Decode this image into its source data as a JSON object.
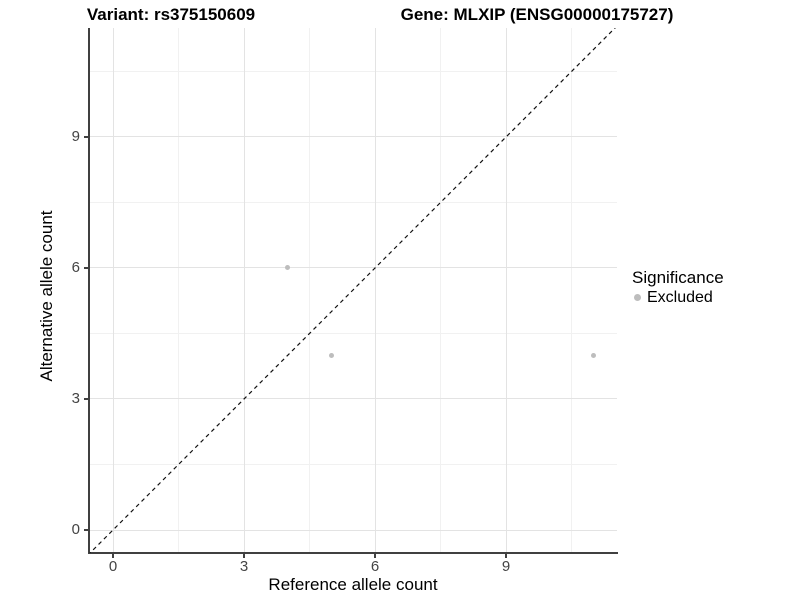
{
  "titles": {
    "variant": "Variant: rs375150609",
    "gene": "Gene: MLXIP (ENSG00000175727)"
  },
  "legend": {
    "title": "Significance",
    "position": "right",
    "items": [
      {
        "label": "Excluded",
        "color": "#bdbdbd"
      }
    ]
  },
  "chart_data": {
    "type": "scatter",
    "title_left": "Variant: rs375150609",
    "title_right": "Gene: MLXIP (ENSG00000175727)",
    "xlabel": "Reference allele count",
    "ylabel": "Alternative allele count",
    "xlim": [
      -0.55,
      11.55
    ],
    "ylim": [
      -0.55,
      11.5
    ],
    "x_ticks": [
      0,
      3,
      6,
      9
    ],
    "y_ticks": [
      0,
      3,
      6,
      9
    ],
    "x_minor": [
      1.5,
      4.5,
      7.5,
      10.5
    ],
    "y_minor": [
      1.5,
      4.5,
      7.5,
      10.5
    ],
    "grid": true,
    "legend_position": "right",
    "series": [
      {
        "name": "Excluded",
        "color": "#bdbdbd",
        "points": [
          [
            4,
            6
          ],
          [
            5,
            4
          ],
          [
            11,
            4
          ]
        ]
      }
    ],
    "reference_line": {
      "type": "identity",
      "equation": "y = x",
      "style": "dashed",
      "color": "#111111"
    },
    "palette": {
      "grid_major": "#e3e3e3",
      "grid_minor": "#f1f1f1",
      "axis_line": "#404040",
      "tick_text": "#444444",
      "point": "#bdbdbd"
    }
  }
}
